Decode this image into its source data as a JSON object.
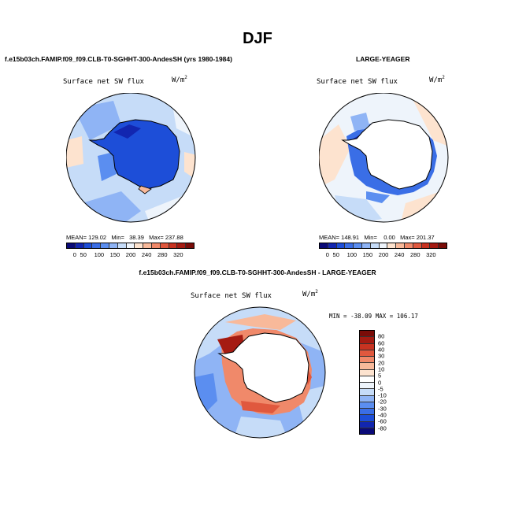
{
  "figure_title": "DJF",
  "panel1": {
    "header": "f.e15b03ch.FAMIP.f09_f09.CLB-T0-SGHHT-300-AndesSH (yrs 1980-1984)",
    "field": "Surface net SW flux",
    "units_base": "W/m",
    "units_exp": "2",
    "mean_label": "MEAN=",
    "mean": "129.02",
    "min_label": "Min=",
    "min": "38.39",
    "max_label": "Max=",
    "max": "237.88"
  },
  "panel2": {
    "header": "LARGE-YEAGER",
    "field": "Surface net SW flux",
    "units_base": "W/m",
    "units_exp": "2",
    "mean_label": "MEAN=",
    "mean": "148.91",
    "min_label": "Min=",
    "min": "0.00",
    "max_label": "Max=",
    "max": "201.37"
  },
  "colorbar_abs": {
    "colors": [
      "#0a0a78",
      "#1226b0",
      "#1d4ed8",
      "#3a6ee6",
      "#5b8ef0",
      "#8fb4f5",
      "#c6dcf8",
      "#eef4fb",
      "#fde3cf",
      "#f8b99a",
      "#f0896a",
      "#e0583e",
      "#c83321",
      "#a51b12",
      "#7a0c08"
    ],
    "ticks": [
      "0",
      "50",
      "100",
      "150",
      "200",
      "240",
      "280",
      "320"
    ]
  },
  "panel3": {
    "header": "f.e15b03ch.FAMIP.f09_f09.CLB-T0-SGHHT-300-AndesSH - LARGE-YEAGER",
    "field": "Surface net SW flux",
    "units_base": "W/m",
    "units_exp": "2",
    "minmax": "MIN = -38.09  MAX = 106.17"
  },
  "colorbar_diff": {
    "colors": [
      "#7a0c08",
      "#a51b12",
      "#c83321",
      "#e0583e",
      "#f0896a",
      "#f8b99a",
      "#fde3cf",
      "#ffffff",
      "#eef4fb",
      "#c6dcf8",
      "#8fb4f5",
      "#5b8ef0",
      "#3a6ee6",
      "#1d4ed8",
      "#1226b0",
      "#0a0a78"
    ],
    "ticks": [
      "80",
      "60",
      "40",
      "30",
      "20",
      "10",
      "5",
      "0",
      "-5",
      "-10",
      "-20",
      "-30",
      "-40",
      "-60",
      "-80"
    ]
  }
}
